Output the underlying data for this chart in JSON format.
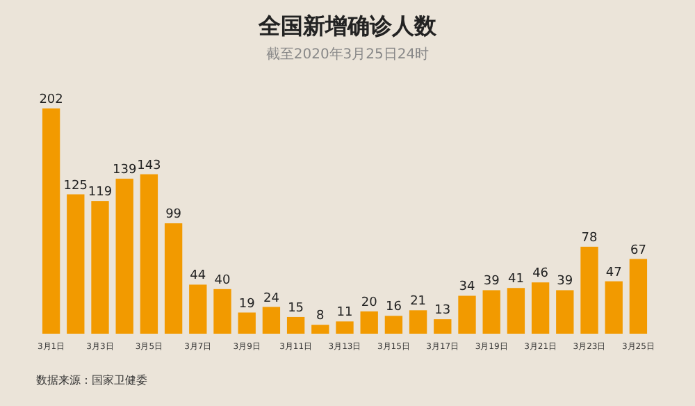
{
  "chart_data": {
    "type": "bar",
    "title": "全国新增确诊人数",
    "subtitle": "截至2020年3月25日24时",
    "categories": [
      "3月1日",
      null,
      "3月3日",
      null,
      "3月5日",
      null,
      "3月7日",
      null,
      "3月9日",
      null,
      "3月11日",
      null,
      "3月13日",
      null,
      "3月15日",
      null,
      "3月17日",
      null,
      "3月19日",
      null,
      "3月21日",
      null,
      "3月23日",
      null,
      "3月25日"
    ],
    "values": [
      202,
      125,
      119,
      139,
      143,
      99,
      44,
      40,
      19,
      24,
      15,
      8,
      11,
      20,
      16,
      21,
      13,
      34,
      39,
      41,
      46,
      39,
      78,
      47,
      67
    ],
    "color": "#f29a00",
    "data_labels": true,
    "annotations": [
      "数据来源：国家卫健委"
    ]
  }
}
